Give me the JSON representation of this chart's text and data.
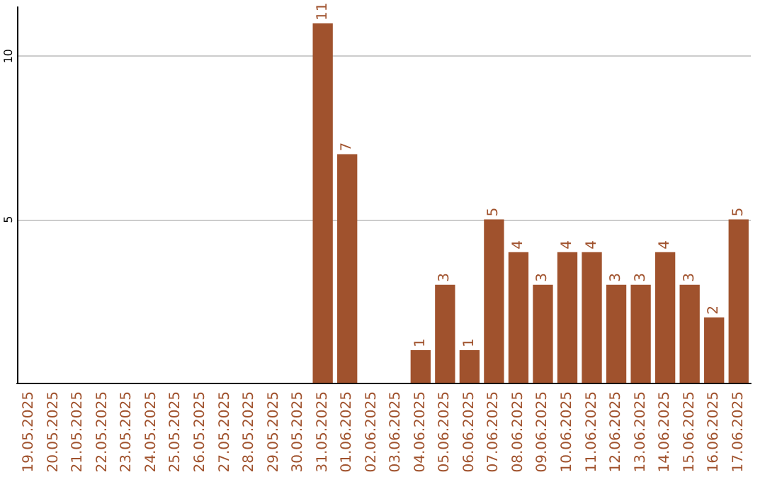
{
  "chart_data": {
    "type": "bar",
    "categories": [
      "19.05.2025",
      "20.05.2025",
      "21.05.2025",
      "22.05.2025",
      "23.05.2025",
      "24.05.2025",
      "25.05.2025",
      "26.05.2025",
      "27.05.2025",
      "28.05.2025",
      "29.05.2025",
      "30.05.2025",
      "31.05.2025",
      "01.06.2025",
      "02.06.2025",
      "03.06.2025",
      "04.06.2025",
      "05.06.2025",
      "06.06.2025",
      "07.06.2025",
      "08.06.2025",
      "09.06.2025",
      "10.06.2025",
      "11.06.2025",
      "12.06.2025",
      "13.06.2025",
      "14.06.2025",
      "15.06.2025",
      "16.06.2025",
      "17.06.2025"
    ],
    "values": [
      0,
      0,
      0,
      0,
      0,
      0,
      0,
      0,
      0,
      0,
      0,
      0,
      11,
      7,
      0,
      0,
      1,
      3,
      1,
      5,
      4,
      3,
      4,
      4,
      3,
      3,
      4,
      3,
      2,
      5
    ],
    "value_labels": [
      null,
      null,
      null,
      null,
      null,
      null,
      null,
      null,
      null,
      null,
      null,
      null,
      "11",
      "7",
      null,
      null,
      "1",
      "3",
      "1",
      "5",
      "4",
      "3",
      "4",
      "4",
      "3",
      "3",
      "4",
      "3",
      "2",
      "5"
    ],
    "color": "#a0522d",
    "ylim": [
      0,
      11.5
    ],
    "yticks": [
      5,
      10
    ],
    "grid": "y"
  }
}
